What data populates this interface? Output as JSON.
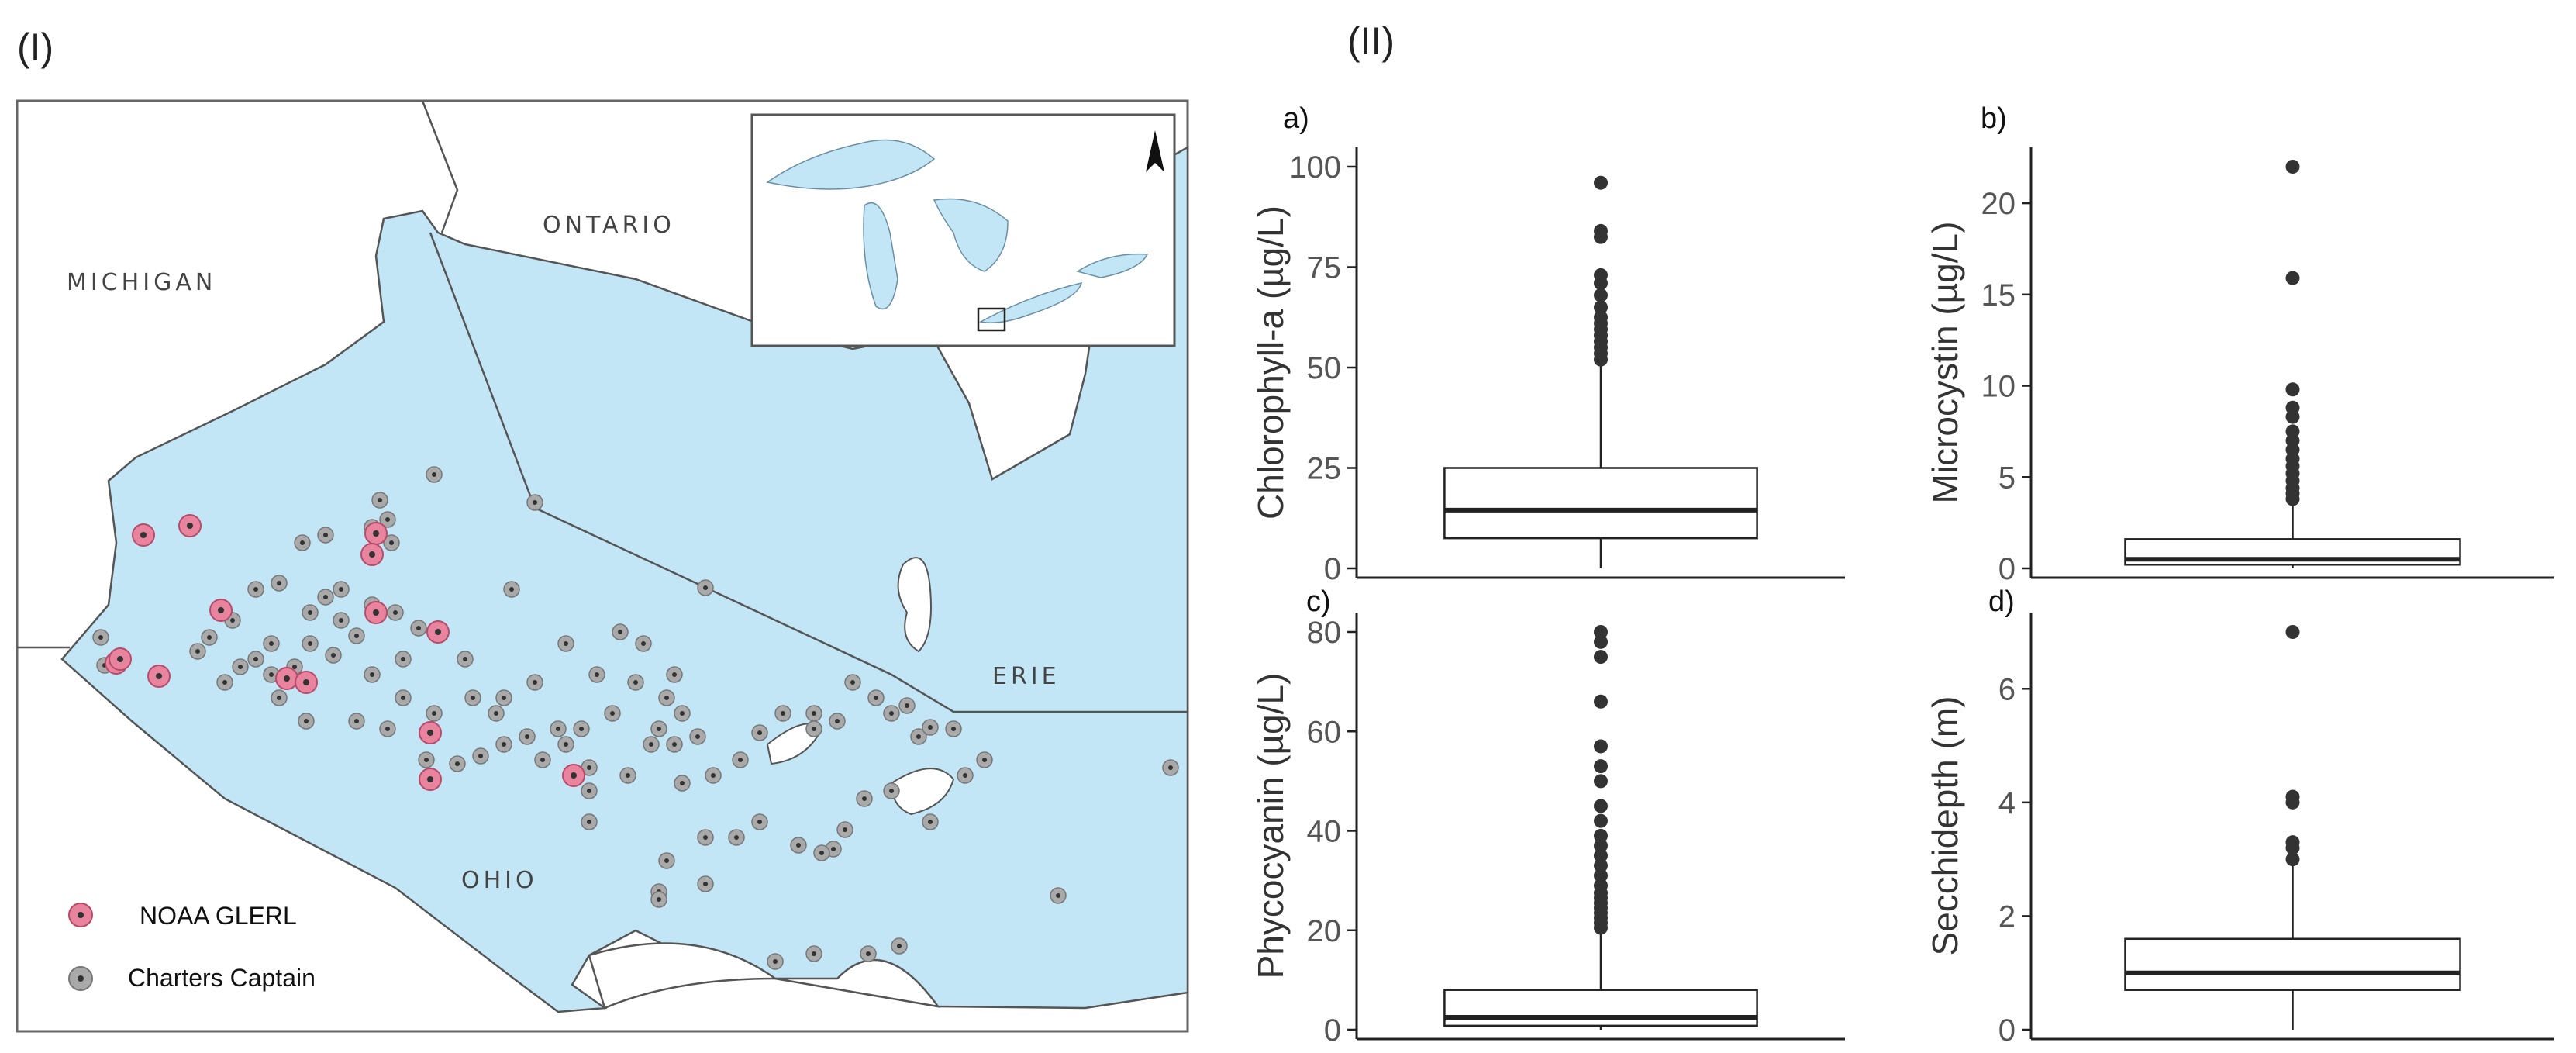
{
  "panels": {
    "left": "(I)",
    "right": "(II)"
  },
  "map": {
    "labels": {
      "michigan": "MICHIGAN",
      "ontario": "ONTARIO",
      "ohio": "OHIO",
      "erie": "ERIE"
    },
    "legend": [
      {
        "label": "NOAA GLERL",
        "color": "#e9849f"
      },
      {
        "label": "Charters Captain",
        "color": "#a9a9a9"
      }
    ],
    "colors": {
      "water": "#c3e6f7",
      "land": "#ffffff",
      "outline": "#555555"
    }
  },
  "chart_data": [
    {
      "type": "box",
      "panel": "a)",
      "ylabel": "Chlorophyll-a (µg/L)",
      "ylim": [
        0,
        100
      ],
      "yticks": [
        0,
        25,
        50,
        75,
        100
      ],
      "box": {
        "whisker_low": 0,
        "q1": 7.5,
        "median": 14.5,
        "q3": 25,
        "whisker_high": 51
      },
      "outliers": [
        52,
        53.5,
        55,
        56.5,
        58,
        59.5,
        61,
        62.5,
        65,
        68,
        71,
        73,
        82.5,
        84,
        96
      ]
    },
    {
      "type": "box",
      "panel": "b)",
      "ylabel": "Microcystin (µg/L)",
      "ylim": [
        0,
        22
      ],
      "yticks": [
        0,
        5,
        10,
        15,
        20
      ],
      "box": {
        "whisker_low": 0,
        "q1": 0.2,
        "median": 0.5,
        "q3": 1.6,
        "whisker_high": 3.6
      },
      "outliers": [
        3.8,
        4.1,
        4.4,
        4.8,
        5.2,
        5.6,
        6,
        6.5,
        7,
        7.5,
        8.3,
        8.8,
        9.8,
        15.9,
        22
      ]
    },
    {
      "type": "box",
      "panel": "c)",
      "ylabel": "Phycocyanin (µg/L)",
      "ylim": [
        0,
        80
      ],
      "yticks": [
        0,
        20,
        40,
        60,
        80
      ],
      "box": {
        "whisker_low": 0,
        "q1": 0.8,
        "median": 2.5,
        "q3": 8,
        "whisker_high": 19.5
      },
      "outliers": [
        20.5,
        21.5,
        22.5,
        23.5,
        24.5,
        25.5,
        26.5,
        27.5,
        29,
        31,
        33,
        35,
        37,
        39,
        42,
        45,
        50,
        53,
        57,
        66,
        75,
        78,
        80
      ]
    },
    {
      "type": "box",
      "panel": "d)",
      "ylabel": "Secchidepth (m)",
      "ylim": [
        0,
        7
      ],
      "yticks": [
        0,
        2,
        4,
        6
      ],
      "box": {
        "whisker_low": 0,
        "q1": 0.7,
        "median": 1,
        "q3": 1.6,
        "whisker_high": 2.9
      },
      "outliers": [
        3,
        3.2,
        3.3,
        4,
        4.1,
        7
      ]
    }
  ]
}
